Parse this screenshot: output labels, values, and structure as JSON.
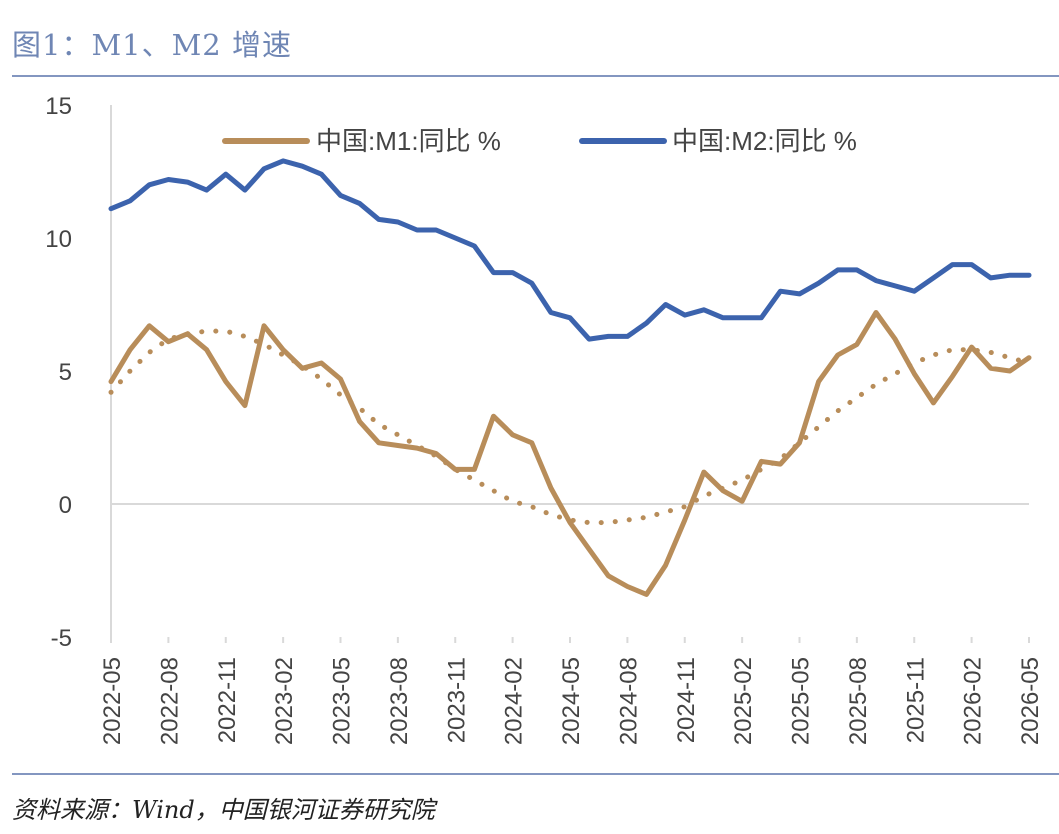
{
  "title": "图1：M1、M2 增速",
  "source": "资料来源：Wind，中国银河证券研究院",
  "colors": {
    "m1": "#b88d5a",
    "m2": "#3c63ad",
    "axis": "#d9d9d9",
    "title": "#6f86b4"
  },
  "chart_data": {
    "type": "line",
    "ylim": [
      -5,
      15
    ],
    "yticks": [
      "15",
      "10",
      "5",
      "0",
      "-5"
    ],
    "xtick_labels": [
      "2022-05",
      "2022-08",
      "2022-11",
      "2023-02",
      "2023-05",
      "2023-08",
      "2023-11",
      "2024-02",
      "2024-05",
      "2024-08",
      "2024-11",
      "2025-02",
      "2025-05",
      "2025-08",
      "2025-11",
      "2026-02",
      "2026-05"
    ],
    "legend_position": "top",
    "series": [
      {
        "name": "中国:M1:同比 %",
        "color": "#b88d5a",
        "style": "solid",
        "values": [
          4.6,
          5.8,
          6.7,
          6.1,
          6.4,
          5.8,
          4.6,
          3.7,
          6.7,
          5.8,
          5.1,
          5.3,
          4.7,
          3.1,
          2.3,
          2.2,
          2.1,
          1.9,
          1.3,
          1.3,
          3.3,
          2.6,
          2.3,
          0.6,
          -0.7,
          -1.7,
          -2.7,
          -3.1,
          -3.4,
          -2.3,
          -0.6,
          1.2,
          0.5,
          0.1,
          1.6,
          1.5,
          2.3,
          4.6,
          5.6,
          6.0,
          7.2,
          6.2,
          4.9,
          3.8,
          4.8,
          5.9,
          5.1,
          5.0,
          5.5
        ]
      },
      {
        "name": "中国:M2:同比 %",
        "color": "#3c63ad",
        "style": "solid",
        "values": [
          11.1,
          11.4,
          12.0,
          12.2,
          12.1,
          11.8,
          12.4,
          11.8,
          12.6,
          12.9,
          12.7,
          12.4,
          11.6,
          11.3,
          10.7,
          10.6,
          10.3,
          10.3,
          10.0,
          9.7,
          8.7,
          8.7,
          8.3,
          7.2,
          7.0,
          6.2,
          6.3,
          6.3,
          6.8,
          7.5,
          7.1,
          7.3,
          7.0,
          7.0,
          7.0,
          8.0,
          7.9,
          8.3,
          8.8,
          8.8,
          8.4,
          8.2,
          8.0,
          8.5,
          9.0,
          9.0,
          8.5,
          8.6,
          8.6
        ]
      },
      {
        "name": "",
        "color": "#b88d5a",
        "style": "dotted",
        "values": [
          4.2,
          5.0,
          5.7,
          6.2,
          6.4,
          6.5,
          6.5,
          6.3,
          6.0,
          5.6,
          5.2,
          4.7,
          4.1,
          3.6,
          3.0,
          2.6,
          2.2,
          1.8,
          1.3,
          0.9,
          0.5,
          0.1,
          -0.1,
          -0.4,
          -0.6,
          -0.7,
          -0.7,
          -0.6,
          -0.5,
          -0.3,
          -0.1,
          0.3,
          0.6,
          0.9,
          1.3,
          1.7,
          2.3,
          2.9,
          3.5,
          4.0,
          4.5,
          4.9,
          5.3,
          5.6,
          5.8,
          5.8,
          5.7,
          5.5,
          5.3
        ]
      }
    ]
  }
}
